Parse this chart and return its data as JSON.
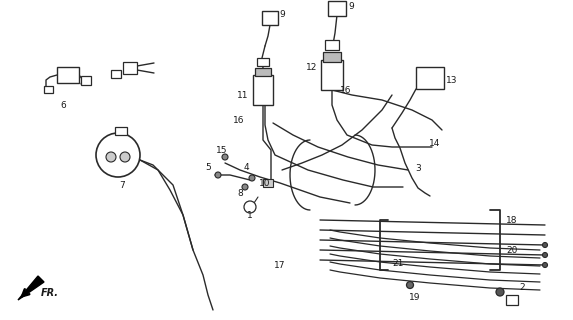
{
  "bg_color": "#ffffff",
  "line_color": "#2a2a2a",
  "text_color": "#1a1a1a",
  "fig_width": 5.73,
  "fig_height": 3.2,
  "dpi": 100,
  "label_fs": 6.5,
  "lw_wire": 1.0,
  "lw_thick": 1.3
}
